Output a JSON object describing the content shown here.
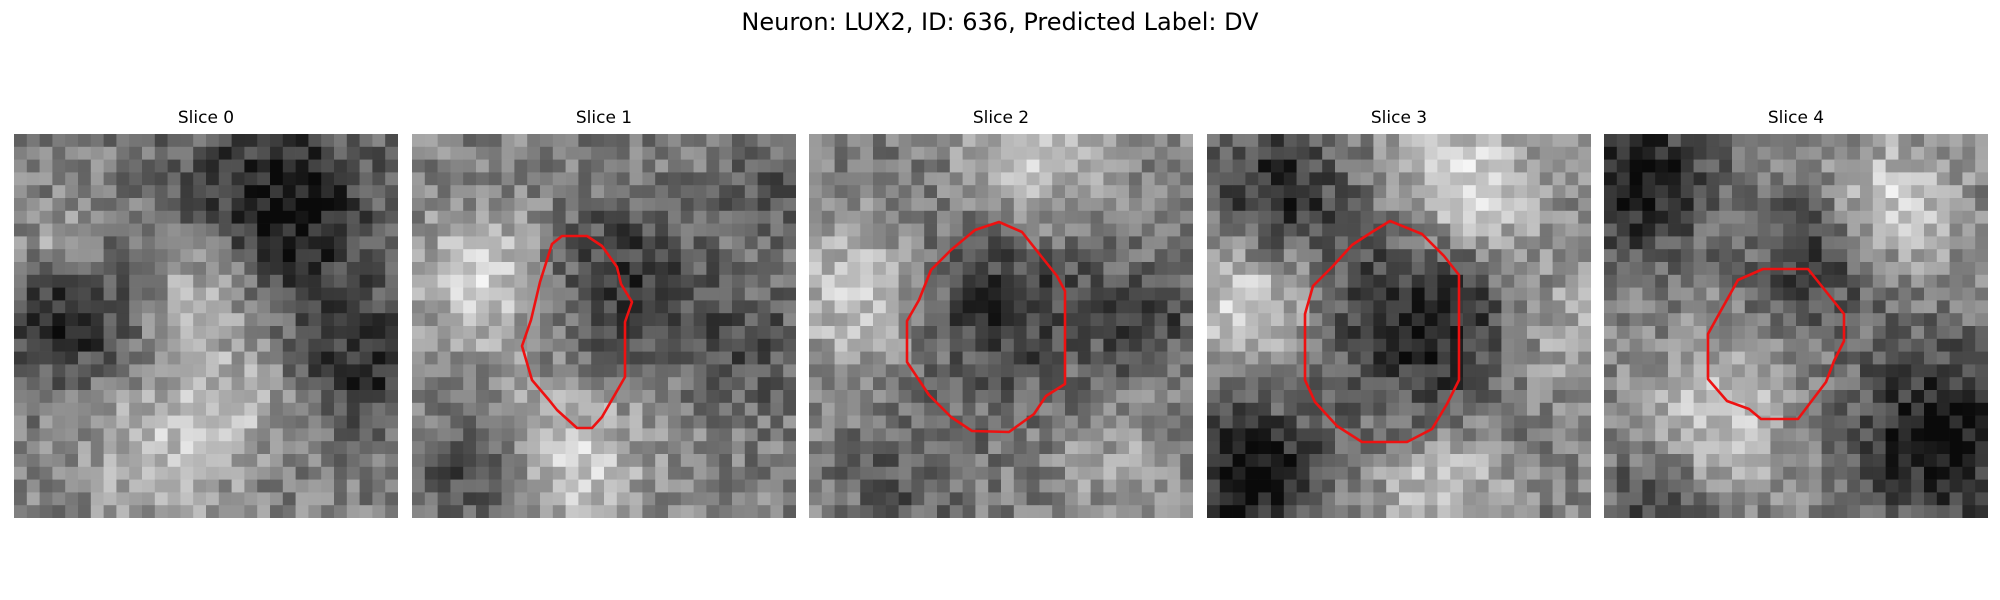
{
  "figure": {
    "title": "Neuron: LUX2, ID: 636, Predicted Label: DV",
    "outline_color": "#ee1111"
  },
  "panels": [
    {
      "title": "Slice 0",
      "has_outline": false
    },
    {
      "title": "Slice 1",
      "has_outline": true
    },
    {
      "title": "Slice 2",
      "has_outline": true
    },
    {
      "title": "Slice 3",
      "has_outline": true
    },
    {
      "title": "Slice 4",
      "has_outline": true
    }
  ]
}
